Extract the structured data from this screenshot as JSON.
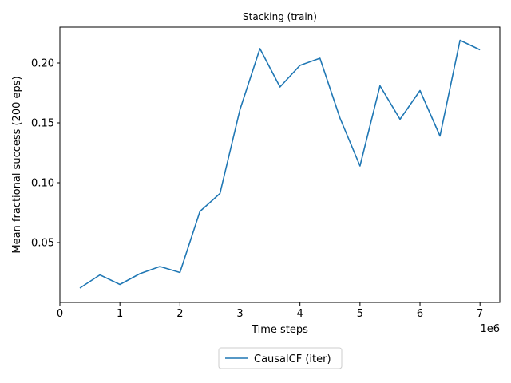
{
  "chart_data": {
    "type": "line",
    "title": "Stacking (train)",
    "xlabel": "Time steps",
    "ylabel": "Mean fractional success (200 eps)",
    "x_offset_text": "1e6",
    "xlim": [
      0,
      7.33
    ],
    "ylim": [
      0.0,
      0.23
    ],
    "x_ticks": [
      0,
      1,
      2,
      3,
      4,
      5,
      6,
      7
    ],
    "x_tick_labels": [
      "0",
      "1",
      "2",
      "3",
      "4",
      "5",
      "6",
      "7"
    ],
    "y_ticks": [
      0.05,
      0.1,
      0.15,
      0.2
    ],
    "y_tick_labels": [
      "0.05",
      "0.10",
      "0.15",
      "0.20"
    ],
    "grid": false,
    "legend_position": "below",
    "series": [
      {
        "name": "CausalCF (iter)",
        "color": "#1f77b4",
        "x": [
          0.333,
          0.667,
          1.0,
          1.333,
          1.667,
          2.0,
          2.333,
          2.667,
          3.0,
          3.333,
          3.667,
          4.0,
          4.333,
          4.667,
          5.0,
          5.333,
          5.667,
          6.0,
          6.333,
          6.667,
          7.0
        ],
        "values": [
          0.012,
          0.023,
          0.015,
          0.024,
          0.03,
          0.025,
          0.076,
          0.091,
          0.161,
          0.212,
          0.18,
          0.198,
          0.204,
          0.154,
          0.114,
          0.181,
          0.153,
          0.177,
          0.139,
          0.219,
          0.211
        ]
      }
    ]
  }
}
